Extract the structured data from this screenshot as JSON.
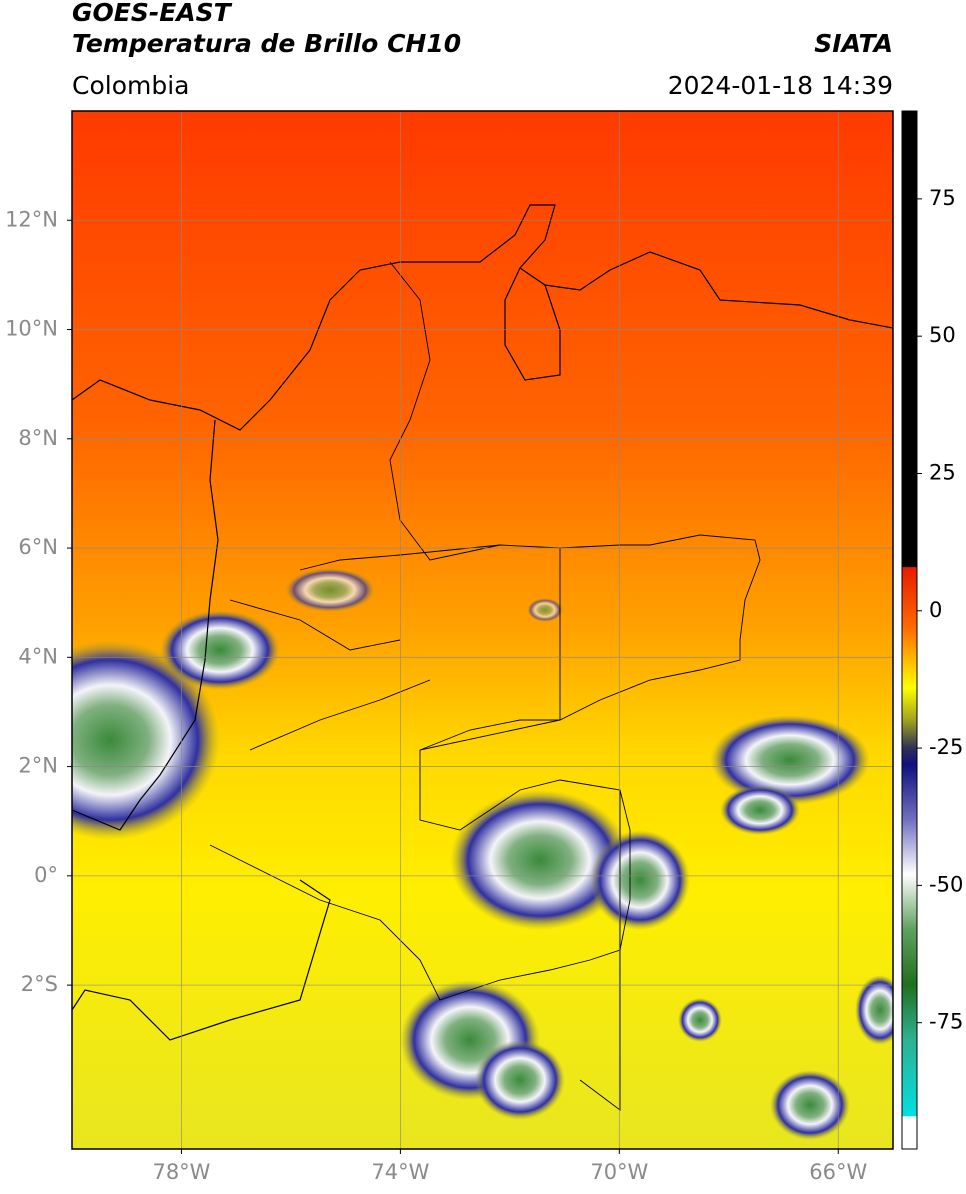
{
  "header": {
    "title": "GOES-EAST",
    "subtitle": "Temperatura de Brillo CH10",
    "source": "SIATA",
    "region": "Colombia",
    "timestamp": "2024-01-18 14:39"
  },
  "map": {
    "type": "map",
    "xlim": [
      -80,
      -65
    ],
    "ylim": [
      -5,
      14
    ],
    "grid": true,
    "xticks": [
      {
        "value": -78,
        "label": "78°W"
      },
      {
        "value": -74,
        "label": "74°W"
      },
      {
        "value": -70,
        "label": "70°W"
      },
      {
        "value": -66,
        "label": "66°W"
      }
    ],
    "yticks": [
      {
        "value": 12,
        "label": "12°N"
      },
      {
        "value": 10,
        "label": "10°N"
      },
      {
        "value": 8,
        "label": "8°N"
      },
      {
        "value": 6,
        "label": "6°N"
      },
      {
        "value": 4,
        "label": "4°N"
      },
      {
        "value": 2,
        "label": "2°N"
      },
      {
        "value": 0,
        "label": "0°"
      },
      {
        "value": -2,
        "label": "2°S"
      }
    ]
  },
  "colorbar": {
    "ylim": [
      -98,
      91
    ],
    "yticks": [
      75,
      50,
      25,
      0,
      -25,
      -50,
      -75
    ],
    "colormap": [
      {
        "value": 91,
        "color": "#000000"
      },
      {
        "value": 8,
        "color": "#000000"
      },
      {
        "value": 7.9,
        "color": "#e81a00"
      },
      {
        "value": -3,
        "color": "#ff6a00"
      },
      {
        "value": -14,
        "color": "#ffff00"
      },
      {
        "value": -20,
        "color": "#a0a020"
      },
      {
        "value": -25,
        "color": "#30305a"
      },
      {
        "value": -28,
        "color": "#101080"
      },
      {
        "value": -38,
        "color": "#7070c0"
      },
      {
        "value": -48,
        "color": "#ffffff"
      },
      {
        "value": -58,
        "color": "#60a060"
      },
      {
        "value": -68,
        "color": "#207020"
      },
      {
        "value": -78,
        "color": "#30b090"
      },
      {
        "value": -92,
        "color": "#00e0e0"
      },
      {
        "value": -92.1,
        "color": "#ffffff"
      },
      {
        "value": -98,
        "color": "#ffffff"
      }
    ]
  }
}
